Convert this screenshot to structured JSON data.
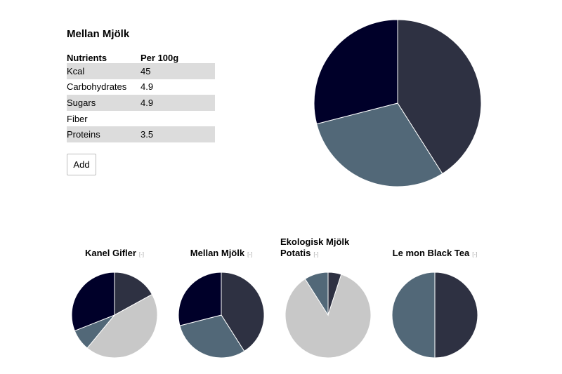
{
  "product": {
    "title": "Mellan Mjölk",
    "table": {
      "headers": [
        "Nutrients",
        "Per 100g"
      ],
      "rows": [
        {
          "name": "Kcal",
          "value": "45"
        },
        {
          "name": "Carbohydrates",
          "value": "4.9"
        },
        {
          "name": "Sugars",
          "value": "4.9"
        },
        {
          "name": "Fiber",
          "value": ""
        },
        {
          "name": "Proteins",
          "value": "3.5"
        }
      ]
    },
    "add_label": "Add"
  },
  "colors": {
    "navy": "#000029",
    "slate": "#2e3142",
    "blue_gray": "#526878",
    "light_gray": "#c8c8c8"
  },
  "chart_data": [
    {
      "type": "pie",
      "values": [
        41,
        30,
        29
      ],
      "colors": [
        "#2e3142",
        "#526878",
        "#000029"
      ]
    },
    {
      "type": "pie",
      "title": "Kanel Gifler",
      "values": [
        17,
        44,
        8,
        31
      ],
      "colors": [
        "#2e3142",
        "#c8c8c8",
        "#526878",
        "#000029"
      ]
    },
    {
      "type": "pie",
      "title": "Mellan Mjölk",
      "values": [
        41,
        30,
        29
      ],
      "colors": [
        "#2e3142",
        "#526878",
        "#000029"
      ]
    },
    {
      "type": "pie",
      "title": "Ekologisk Mjölk Potatis",
      "values": [
        5,
        86,
        9
      ],
      "colors": [
        "#2e3142",
        "#c8c8c8",
        "#526878"
      ]
    },
    {
      "type": "pie",
      "title": "Le mon Black Tea",
      "values": [
        50,
        50
      ],
      "colors": [
        "#2e3142",
        "#526878"
      ]
    }
  ],
  "comparison": {
    "remove_label": "[-]"
  }
}
